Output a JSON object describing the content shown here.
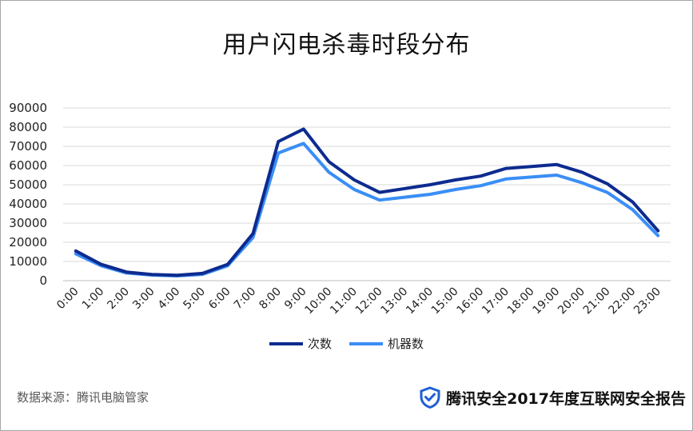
{
  "chart_data": {
    "type": "line",
    "title": "用户闪电杀毒时段分布",
    "categories": [
      "0:00",
      "1:00",
      "2:00",
      "3:00",
      "4:00",
      "5:00",
      "6:00",
      "7:00",
      "8:00",
      "9:00",
      "10:00",
      "11:00",
      "12:00",
      "13:00",
      "14:00",
      "15:00",
      "16:00",
      "17:00",
      "18:00",
      "19:00",
      "20:00",
      "21:00",
      "22:00",
      "23:00"
    ],
    "series": [
      {
        "name": "次数",
        "color": "#0d2b8f",
        "values": [
          15500,
          8500,
          4500,
          3200,
          2800,
          3800,
          8500,
          24500,
          72500,
          79000,
          62000,
          52500,
          46000,
          48000,
          50000,
          52500,
          54500,
          58500,
          59500,
          60500,
          56500,
          50500,
          41000,
          26000
        ]
      },
      {
        "name": "机器数",
        "color": "#3a8ef6",
        "values": [
          14000,
          7800,
          4000,
          2900,
          2500,
          3300,
          7800,
          22500,
          66500,
          71500,
          56500,
          47500,
          42000,
          43500,
          45000,
          47500,
          49500,
          53000,
          54000,
          55000,
          51000,
          46000,
          37000,
          23500
        ]
      }
    ],
    "ylim": [
      0,
      90000
    ],
    "yticks": [
      "0",
      "10000",
      "20000",
      "30000",
      "40000",
      "50000",
      "60000",
      "70000",
      "80000",
      "90000"
    ],
    "grid": true,
    "legend_position": "bottom"
  },
  "footer": {
    "source": "数据来源：腾讯电脑管家",
    "brand": "腾讯安全2017年度互联网安全报告",
    "brand_icon": "shield-check-icon",
    "brand_color": "#1f5fd6"
  }
}
